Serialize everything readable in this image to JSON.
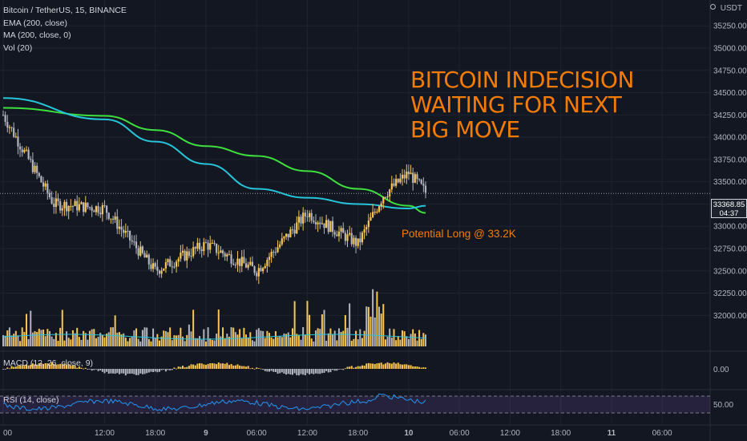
{
  "legend": {
    "symbol": "Bitcoin / TetherUS, 15, BINANCE",
    "ema": "EMA (200, close)",
    "ma": "MA (200, close, 0)",
    "vol": "Vol (20)"
  },
  "currency": "USDT",
  "annotations": {
    "headline": [
      "BITCOIN INDECISION",
      "WAITING FOR NEXT",
      "BIG MOVE"
    ],
    "long_label": "Potential Long @ 33.2K"
  },
  "last_price": {
    "value": "33368.85",
    "countdown": "04:37"
  },
  "panes": {
    "macd_label": "MACD (12, 26, close, 9)",
    "macd_tick": "0.00",
    "rsi_label": "RSI (14, close)",
    "rsi_tick": "50.00"
  },
  "colors": {
    "background": "#131722",
    "candle_up": "#f9c74f",
    "candle_down": "#b2b5be",
    "ema": "#26c6da",
    "ma": "#3de03d",
    "annotation": "#f57c00",
    "rsi_line": "#2196f3",
    "rsi_band": "#7e57c2"
  },
  "chart_data": {
    "type": "line",
    "title": "Bitcoin / TetherUS, 15, BINANCE",
    "y_axis": {
      "ticks": [
        "35250.00",
        "35000.00",
        "34750.00",
        "34500.00",
        "34250.00",
        "34000.00",
        "33750.00",
        "33500.00",
        "33250.00",
        "33000.00",
        "32750.00",
        "32500.00",
        "32250.00",
        "32000.00"
      ],
      "ylim": [
        31850,
        35450
      ]
    },
    "x_axis": {
      "ticks": [
        "00",
        "12:00",
        "18:00",
        "9",
        "06:00",
        "12:00",
        "18:00",
        "10",
        "06:00",
        "12:00",
        "18:00",
        "11",
        "06:00"
      ]
    },
    "x": [
      "8 00:00",
      "8 12:00",
      "8 18:00",
      "9 00:00",
      "9 06:00",
      "9 12:00",
      "9 18:00",
      "10 00:00",
      "10 06:00",
      "10 12:00",
      "10 18:00",
      "11 00:00",
      "11 06:00"
    ],
    "series": [
      {
        "name": "EMA (200, close)",
        "x": [
          "8 00:00",
          "8 12:00",
          "8 18:00",
          "9 00:00",
          "9 06:00",
          "9 12:00",
          "9 18:00",
          "10 00:00",
          "10 02:00"
        ],
        "values": [
          34440,
          34200,
          33950,
          33700,
          33420,
          33320,
          33250,
          33200,
          33230
        ]
      },
      {
        "name": "MA (200, close, 0)",
        "x": [
          "8 00:00",
          "8 12:00",
          "8 18:00",
          "9 00:00",
          "9 06:00",
          "9 12:00",
          "9 18:00",
          "10 00:00",
          "10 02:00"
        ],
        "values": [
          34330,
          34240,
          34080,
          33900,
          33790,
          33620,
          33420,
          33230,
          33150
        ]
      },
      {
        "name": "Price",
        "x": [
          "8 00:00",
          "8 06:00",
          "8 12:00",
          "8 18:00",
          "9 00:00",
          "9 06:00",
          "9 12:00",
          "9 18:00",
          "9 21:00",
          "10 00:00",
          "10 02:00"
        ],
        "values": [
          34250,
          33250,
          33200,
          32500,
          32800,
          32500,
          33150,
          32800,
          33350,
          33600,
          33380
        ]
      }
    ],
    "annotations": [
      "BITCOIN INDECISION WAITING FOR NEXT BIG MOVE",
      "Potential Long @ 33.2K"
    ],
    "grid": true
  }
}
